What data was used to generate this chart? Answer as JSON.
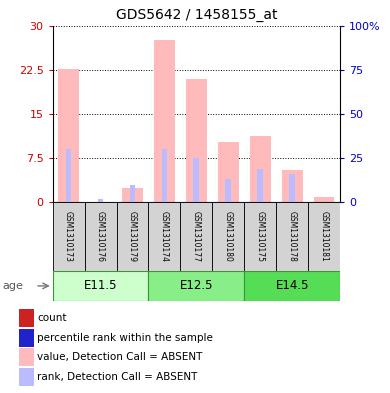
{
  "title": "GDS5642 / 1458155_at",
  "samples": [
    "GSM1310173",
    "GSM1310176",
    "GSM1310179",
    "GSM1310174",
    "GSM1310177",
    "GSM1310180",
    "GSM1310175",
    "GSM1310178",
    "GSM1310181"
  ],
  "groups": [
    {
      "label": "E11.5",
      "indices": [
        0,
        1,
        2
      ],
      "color": "#ccffcc"
    },
    {
      "label": "E12.5",
      "indices": [
        3,
        4,
        5
      ],
      "color": "#88ee88"
    },
    {
      "label": "E14.5",
      "indices": [
        6,
        7,
        8
      ],
      "color": "#55dd55"
    }
  ],
  "pink_values": [
    22.6,
    0.0,
    2.5,
    27.5,
    21.0,
    10.2,
    11.2,
    5.5,
    1.0
  ],
  "blue_rank_values": [
    30.0,
    2.0,
    10.0,
    30.0,
    25.0,
    13.0,
    19.0,
    16.0,
    0.0
  ],
  "ylim_left": [
    0,
    30
  ],
  "ylim_right": [
    0,
    100
  ],
  "yticks_left": [
    0,
    7.5,
    15,
    22.5,
    30
  ],
  "yticks_right": [
    0,
    25,
    50,
    75,
    100
  ],
  "yticklabels_left": [
    "0",
    "7.5",
    "15",
    "22.5",
    "30"
  ],
  "yticklabels_right": [
    "0",
    "25",
    "50",
    "75",
    "100%"
  ],
  "left_tick_color": "#cc0000",
  "right_tick_color": "#0000cc",
  "pink_color": "#ffbbbb",
  "blue_color": "#bbbbff",
  "bg_color": "#ffffff",
  "age_label": "age",
  "legend_items": [
    {
      "color": "#cc2222",
      "label": "count"
    },
    {
      "color": "#2222cc",
      "label": "percentile rank within the sample"
    },
    {
      "color": "#ffbbbb",
      "label": "value, Detection Call = ABSENT"
    },
    {
      "color": "#bbbbff",
      "label": "rank, Detection Call = ABSENT"
    }
  ]
}
